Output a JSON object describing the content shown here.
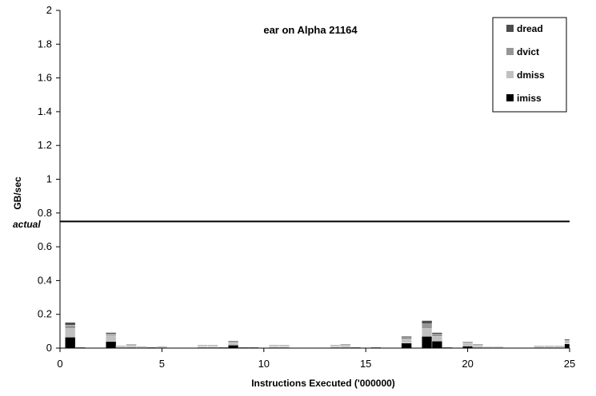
{
  "chart_data": {
    "type": "bar",
    "stacked": true,
    "title": "ear on Alpha 21164",
    "xlabel": "Instructions Executed ('000000)",
    "ylabel": "GB/sec",
    "xlim": [
      0,
      25
    ],
    "ylim": [
      0,
      2
    ],
    "x_ticks": [
      0,
      5,
      10,
      15,
      20,
      25
    ],
    "y_ticks": [
      0,
      0.2,
      0.4,
      0.6,
      0.8,
      1,
      1.2,
      1.4,
      1.6,
      1.8,
      2
    ],
    "y_tick_labels": [
      "0",
      "0.2",
      "0.4",
      "0.6",
      "0.8",
      "1",
      "1.2",
      "1.4",
      "1.6",
      "1.8",
      "2"
    ],
    "reference_line": {
      "value": 0.75,
      "label": "actual"
    },
    "legend": {
      "placement": "top-right",
      "entries": [
        "dread",
        "dvict",
        "dmiss",
        "imiss"
      ]
    },
    "colors": {
      "imiss": "#000000",
      "dmiss": "#c0c0c0",
      "dvict": "#969696",
      "dread": "#4d4d4d"
    },
    "bar_width": 0.5,
    "x": [
      0.5,
      1.0,
      2.5,
      3.0,
      3.5,
      4.0,
      4.5,
      5.0,
      7.0,
      7.5,
      8.0,
      8.5,
      9.0,
      9.5,
      10.5,
      11.0,
      13.5,
      14.0,
      14.5,
      15.5,
      17.0,
      18.0,
      18.5,
      19.0,
      20.0,
      20.5,
      21.0,
      21.5,
      23.5,
      24.0,
      24.5,
      25.0
    ],
    "series": [
      {
        "name": "imiss",
        "values": [
          0.065,
          0.0,
          0.04,
          0.0,
          0.0,
          0.0,
          0.0,
          0.0,
          0.0,
          0.0,
          0.0,
          0.018,
          0.0,
          0.0,
          0.0,
          0.0,
          0.0,
          0.0,
          0.0,
          0.0,
          0.03,
          0.07,
          0.042,
          0.0,
          0.012,
          0.0,
          0.0,
          0.0,
          0.0,
          0.0,
          0.0,
          0.025
        ]
      },
      {
        "name": "dmiss",
        "values": [
          0.05,
          0.003,
          0.032,
          0.008,
          0.013,
          0.005,
          0.003,
          0.005,
          0.01,
          0.01,
          0.004,
          0.014,
          0.003,
          0.004,
          0.01,
          0.01,
          0.01,
          0.012,
          0.003,
          0.004,
          0.02,
          0.045,
          0.026,
          0.003,
          0.013,
          0.012,
          0.004,
          0.004,
          0.008,
          0.008,
          0.008,
          0.014
        ]
      },
      {
        "name": "dvict",
        "values": [
          0.02,
          0.001,
          0.012,
          0.003,
          0.006,
          0.002,
          0.001,
          0.002,
          0.004,
          0.004,
          0.001,
          0.007,
          0.001,
          0.001,
          0.004,
          0.004,
          0.004,
          0.006,
          0.001,
          0.001,
          0.012,
          0.028,
          0.014,
          0.001,
          0.007,
          0.006,
          0.002,
          0.002,
          0.003,
          0.003,
          0.003,
          0.008
        ]
      },
      {
        "name": "dread",
        "values": [
          0.017,
          0.001,
          0.008,
          0.002,
          0.004,
          0.001,
          0.001,
          0.001,
          0.003,
          0.003,
          0.001,
          0.005,
          0.001,
          0.001,
          0.003,
          0.003,
          0.003,
          0.004,
          0.001,
          0.001,
          0.008,
          0.02,
          0.01,
          0.001,
          0.005,
          0.004,
          0.001,
          0.001,
          0.002,
          0.002,
          0.002,
          0.006
        ]
      }
    ]
  }
}
